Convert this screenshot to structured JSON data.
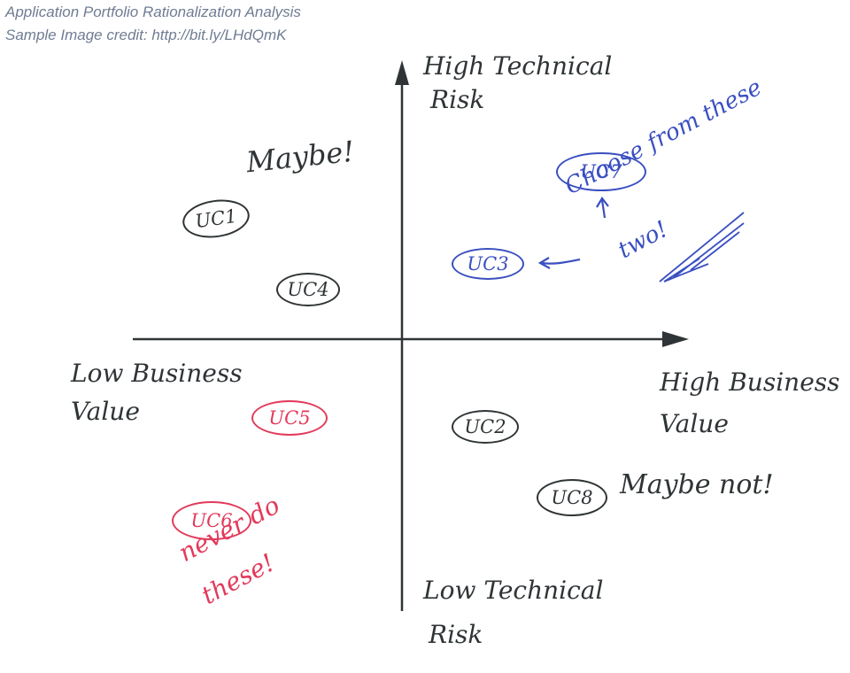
{
  "header": {
    "title": "Application Portfolio Rationalization Analysis",
    "credit": "Sample Image credit: http://bit.ly/LHdQmK"
  },
  "axes": {
    "y_top": [
      "High Technical",
      "Risk"
    ],
    "y_bottom": [
      "Low Technical",
      "Risk"
    ],
    "x_left": [
      "Low Business",
      "Value"
    ],
    "x_right": [
      "High Business",
      "Value"
    ]
  },
  "items": {
    "uc1": "UC1",
    "uc2": "UC2",
    "uc3": "UC3",
    "uc4": "UC4",
    "uc5": "UC5",
    "uc6": "UC6",
    "uc7": "UC7",
    "uc8": "UC8"
  },
  "notes": {
    "maybe": "Maybe!",
    "maybe_not": "Maybe not!",
    "choose": [
      "Choose from these",
      "two!"
    ],
    "never": [
      "never do",
      "these!"
    ]
  },
  "colors": {
    "ink": "#2f3436",
    "blue": "#3a4fc0",
    "red": "#e23a5b",
    "caption": "#6f7c93"
  }
}
